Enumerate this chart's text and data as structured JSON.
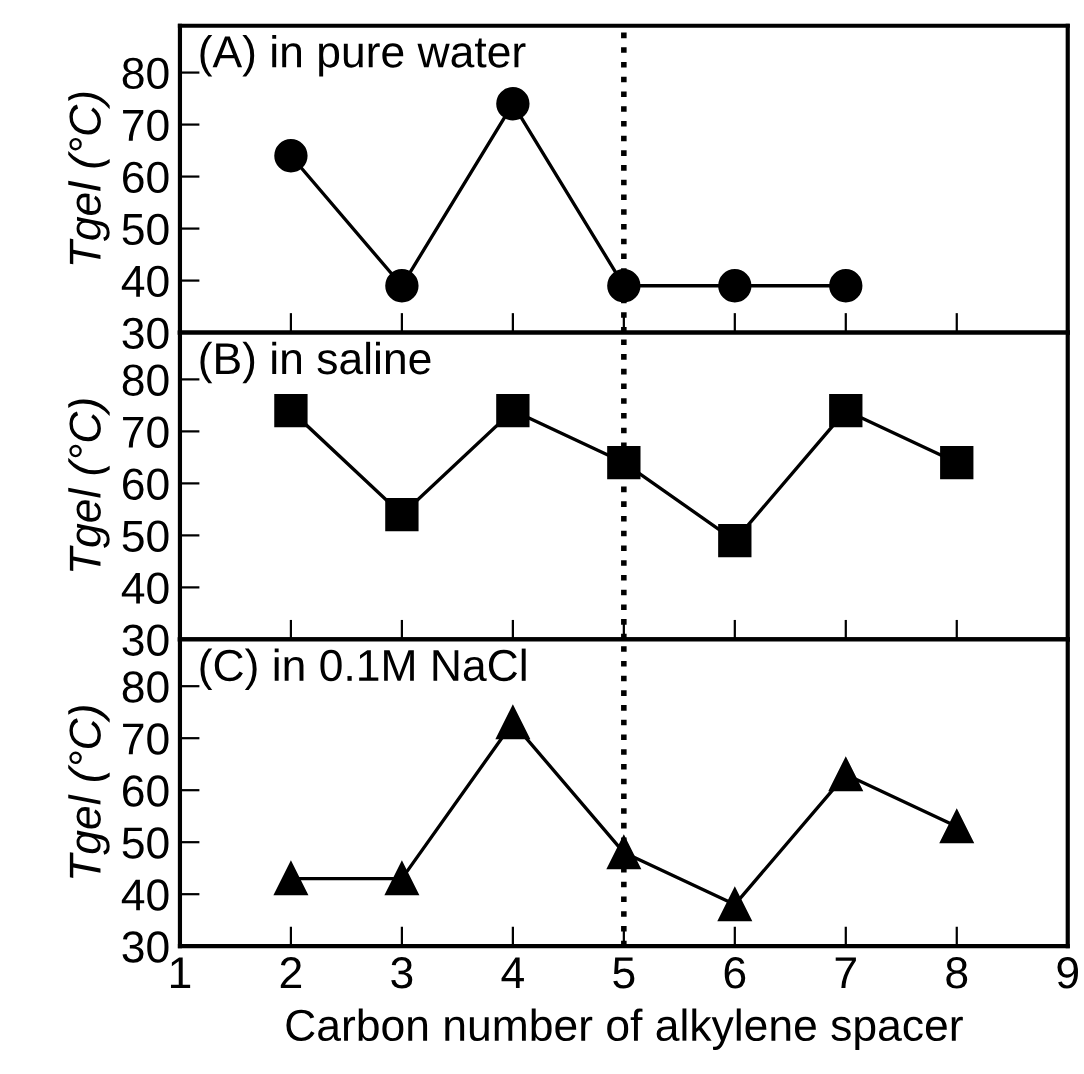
{
  "chart_data": [
    {
      "type": "line",
      "title": "(A) in pure water",
      "ylabel": "Tgel (°C)",
      "x": [
        2,
        3,
        4,
        5,
        6,
        7
      ],
      "series": [
        {
          "color": "#000000",
          "values": [
            64,
            39,
            74,
            39,
            39,
            39
          ]
        }
      ],
      "marker": "circle",
      "line_style": "solid",
      "xlim": [
        1,
        9
      ],
      "xticks": [
        1,
        2,
        3,
        4,
        5,
        6,
        7,
        8,
        9
      ],
      "ylim": [
        30,
        89
      ],
      "yticks": [
        30,
        40,
        50,
        60,
        70,
        80
      ],
      "tick_labels": "y",
      "ref_lines": [
        {
          "axis": "x",
          "value": 5,
          "line_style": "dotted",
          "color": "#000000"
        }
      ],
      "grid": false,
      "legend": false
    },
    {
      "type": "line",
      "title": "(B) in saline",
      "ylabel": "Tgel (°C)",
      "x": [
        2,
        3,
        4,
        5,
        6,
        7,
        8
      ],
      "series": [
        {
          "color": "#000000",
          "values": [
            74,
            54,
            74,
            64,
            49,
            74,
            64
          ]
        }
      ],
      "marker": "square",
      "line_style": "solid",
      "xlim": [
        1,
        9
      ],
      "xticks": [
        1,
        2,
        3,
        4,
        5,
        6,
        7,
        8,
        9
      ],
      "ylim": [
        30,
        89
      ],
      "yticks": [
        30,
        40,
        50,
        60,
        70,
        80
      ],
      "tick_labels": "y",
      "ref_lines": [
        {
          "axis": "x",
          "value": 5,
          "line_style": "dotted",
          "color": "#000000"
        }
      ],
      "grid": false,
      "legend": false
    },
    {
      "type": "line",
      "title": "(C) in 0.1M NaCl",
      "ylabel": "Tgel (°C)",
      "xlabel": "Carbon number of alkylene spacer",
      "x": [
        2,
        3,
        4,
        5,
        6,
        7,
        8
      ],
      "series": [
        {
          "color": "#000000",
          "values": [
            43,
            43,
            73,
            48,
            38,
            63,
            53
          ]
        }
      ],
      "marker": "triangle",
      "line_style": "solid",
      "xlim": [
        1,
        9
      ],
      "xticks": [
        1,
        2,
        3,
        4,
        5,
        6,
        7,
        8,
        9
      ],
      "ylim": [
        30,
        89
      ],
      "yticks": [
        30,
        40,
        50,
        60,
        70,
        80
      ],
      "ref_lines": [
        {
          "axis": "x",
          "value": 5,
          "line_style": "dotted",
          "color": "#000000"
        }
      ],
      "grid": false,
      "legend": false
    }
  ]
}
